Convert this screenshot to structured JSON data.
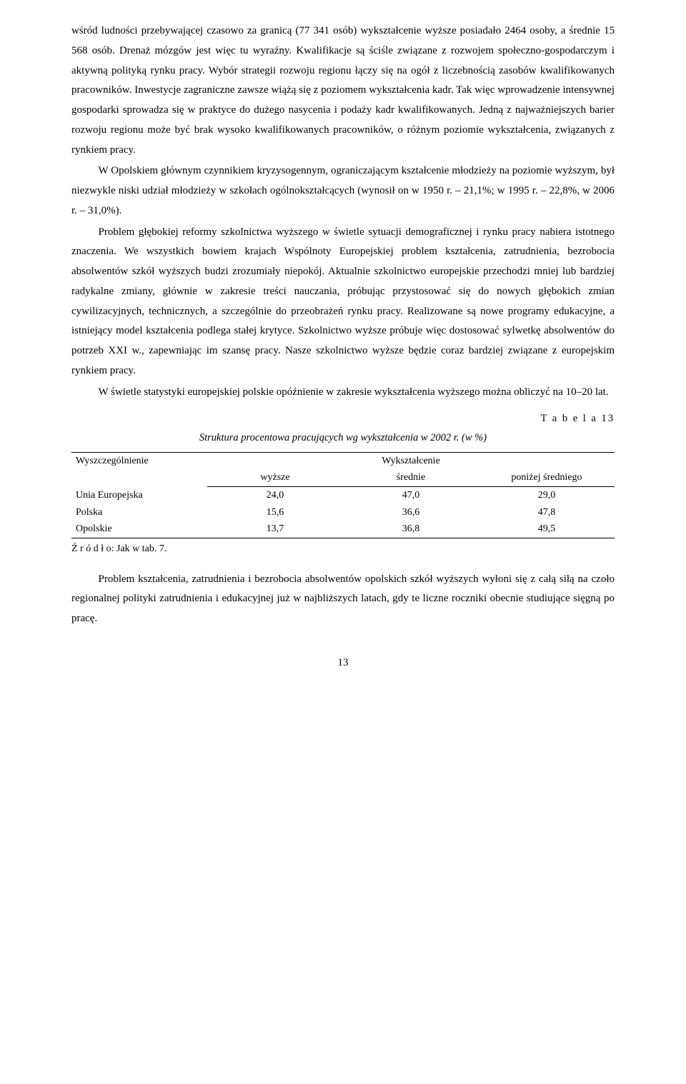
{
  "paragraphs": {
    "p1": "wśród ludności przebywającej czasowo za granicą (77 341 osób) wykształcenie wyższe posiadało 2464 osoby, a średnie 15 568 osób. Drenaż mózgów jest więc tu wyraźny. Kwalifikacje są ściśle związane z rozwojem społeczno-gospodarczym i aktywną polityką rynku pracy. Wybór strategii rozwoju regionu łączy się na ogół z liczebnością zasobów kwalifikowanych pracowników. Inwestycje zagraniczne zawsze wiążą się z poziomem wykształcenia kadr. Tak więc wprowadzenie intensywnej gospodarki sprowadza się w praktyce do dużego nasycenia i podaży kadr kwalifikowanych. Jedną z najważniejszych barier rozwoju regionu może być brak wysoko kwalifikowanych pracowników, o różnym poziomie wykształcenia, związanych z rynkiem pracy.",
    "p2": "W Opolskiem głównym czynnikiem kryzysogennym, ograniczającym kształcenie młodzieży na poziomie wyższym, był niezwykle niski udział młodzieży w szkołach ogólnokształcących (wynosił on w 1950 r. – 21,1%; w 1995 r. – 22,8%, w 2006 r. – 31,0%).",
    "p3": "Problem głębokiej reformy szkolnictwa wyższego w świetle sytuacji demograficznej i rynku pracy nabiera istotnego znaczenia. We wszystkich bowiem krajach Wspólnoty Europejskiej problem kształcenia, zatrudnienia, bezrobocia absolwentów szkół wyższych budzi zrozumiały niepokój. Aktualnie szkolnictwo europejskie przechodzi mniej lub bardziej radykalne zmiany, głównie w zakresie treści nauczania, próbując przystosować się do nowych głębokich zmian cywilizacyjnych, technicznych, a szczególnie do przeobrażeń rynku pracy. Realizowane są nowe programy edukacyjne, a istniejący model kształcenia podlega stałej krytyce. Szkolnictwo wyższe próbuje więc dostosować sylwetkę absolwentów do potrzeb XXI w., zapewniając im szansę pracy. Nasze szkolnictwo wyższe będzie coraz bardziej związane z europejskim rynkiem pracy.",
    "p4": "W świetle statystyki europejskiej polskie opóźnienie w zakresie wykształcenia wyższego można obliczyć na 10–20 lat.",
    "p5": "Problem kształcenia, zatrudnienia i bezrobocia absolwentów opolskich szkół wyższych wyłoni się z całą siłą na czoło regionalnej polityki zatrudnienia i edukacyjnej już w najbliższych latach, gdy te liczne roczniki obecnie studiujące sięgną po pracę."
  },
  "table": {
    "label": "T a b e l a  13",
    "caption": "Struktura procentowa pracujących wg wykształcenia w 2002 r. (w %)",
    "head_left": "Wyszczególnienie",
    "head_right": "Wykształcenie",
    "subheads": [
      "wyższe",
      "średnie",
      "poniżej średniego"
    ],
    "rows": [
      {
        "label": "Unia Europejska",
        "cells": [
          "24,0",
          "47,0",
          "29,0"
        ]
      },
      {
        "label": "Polska",
        "cells": [
          "15,6",
          "36,6",
          "47,8"
        ]
      },
      {
        "label": "Opolskie",
        "cells": [
          "13,7",
          "36,8",
          "49,5"
        ]
      }
    ],
    "source": "Ź r ó d ł o: Jak w tab. 7."
  },
  "page_number": "13"
}
